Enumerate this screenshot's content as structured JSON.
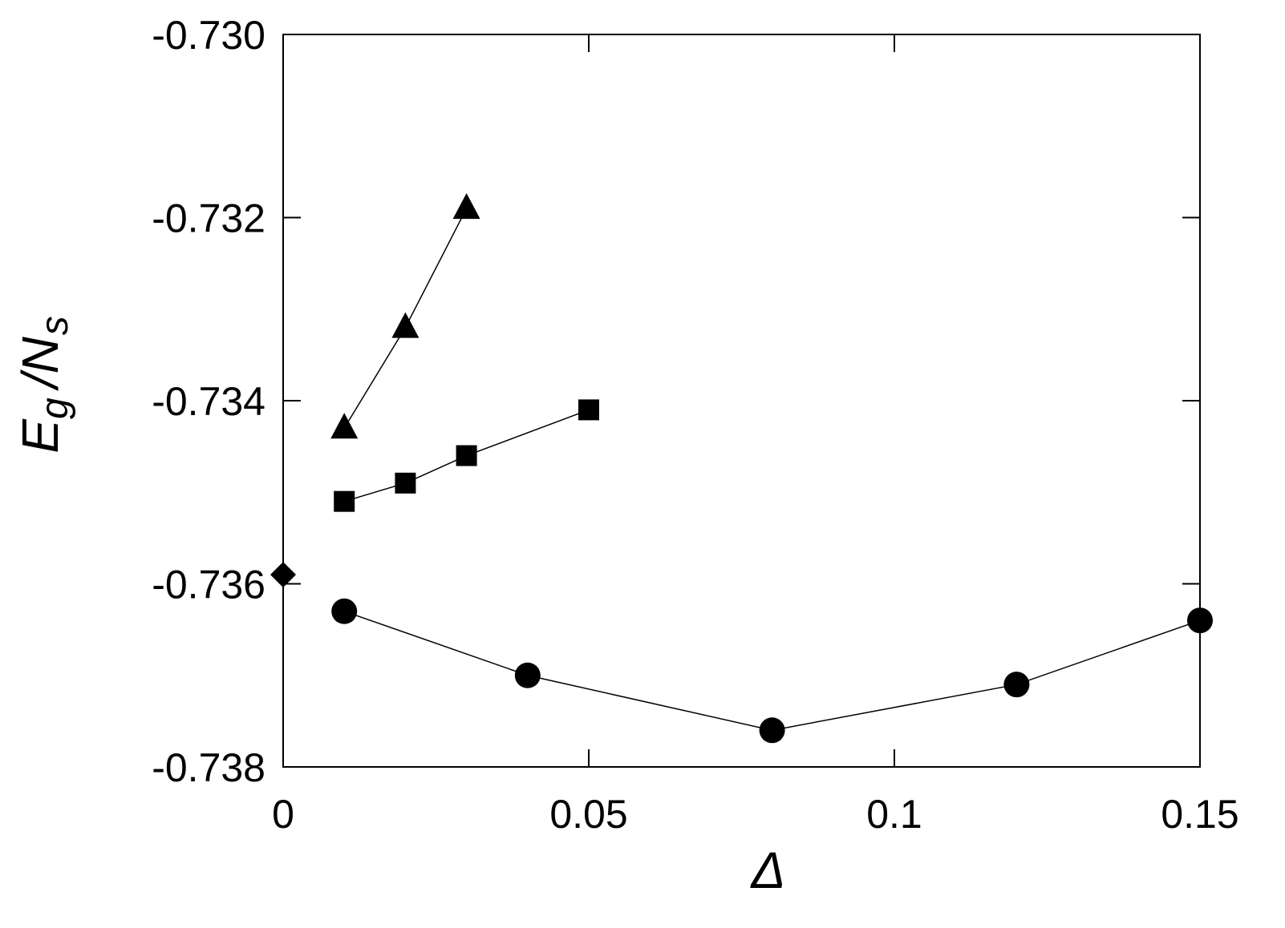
{
  "chart_data": {
    "type": "scatter",
    "title": "",
    "xlabel": "Δ",
    "ylabel": {
      "main": "E",
      "sub1": "g",
      "mid": "/N",
      "sub2": "s"
    },
    "xlim": [
      0,
      0.15
    ],
    "ylim": [
      -0.738,
      -0.73
    ],
    "xticks": [
      0,
      0.05,
      0.1,
      0.15
    ],
    "xtick_labels": [
      "0",
      "0.05",
      "0.1",
      "0.15"
    ],
    "yticks": [
      -0.738,
      -0.736,
      -0.734,
      -0.732,
      -0.73
    ],
    "ytick_labels": [
      "-0.738",
      "-0.736",
      "-0.734",
      "-0.732",
      "-0.730"
    ],
    "grid": false,
    "legend": "none",
    "series": [
      {
        "marker": "triangle",
        "connected": true,
        "color": "#000000",
        "x": [
          0.01,
          0.02,
          0.03
        ],
        "y": [
          -0.7343,
          -0.7332,
          -0.7319
        ]
      },
      {
        "marker": "square",
        "connected": true,
        "color": "#000000",
        "x": [
          0.01,
          0.02,
          0.03,
          0.05
        ],
        "y": [
          -0.7351,
          -0.7349,
          -0.7346,
          -0.7341
        ]
      },
      {
        "marker": "diamond",
        "connected": false,
        "color": "#000000",
        "x": [
          0
        ],
        "y": [
          -0.7359
        ]
      },
      {
        "marker": "circle",
        "connected": true,
        "color": "#000000",
        "x": [
          0.01,
          0.04,
          0.08,
          0.12,
          0.15
        ],
        "y": [
          -0.7363,
          -0.737,
          -0.7376,
          -0.7371,
          -0.7364
        ]
      }
    ]
  }
}
